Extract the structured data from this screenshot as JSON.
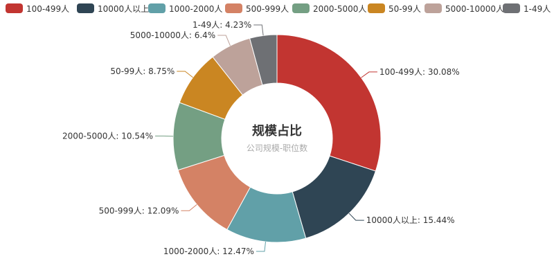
{
  "chart_data": {
    "type": "pie",
    "style": "donut",
    "title": "规模占比",
    "subtitle": "公司规模-职位数",
    "legend_position": "top",
    "categories": [
      "100-499人",
      "10000人以上",
      "1000-2000人",
      "500-999人",
      "2000-5000人",
      "50-99人",
      "5000-10000人",
      "1-49人"
    ],
    "values": [
      30.08,
      15.44,
      12.47,
      12.09,
      10.54,
      8.75,
      6.4,
      4.23
    ],
    "labels": [
      "100-499人: 30.08%",
      "10000人以上: 15.44%",
      "1000-2000人: 12.47%",
      "500-999人: 12.09%",
      "2000-5000人: 10.54%",
      "50-99人: 8.75%",
      "5000-10000人: 6.4%",
      "1-49人: 4.23%"
    ],
    "colors": [
      "#c23531",
      "#2f4554",
      "#61a0a8",
      "#d48265",
      "#749f83",
      "#ca8622",
      "#bda29a",
      "#6e7074"
    ]
  }
}
